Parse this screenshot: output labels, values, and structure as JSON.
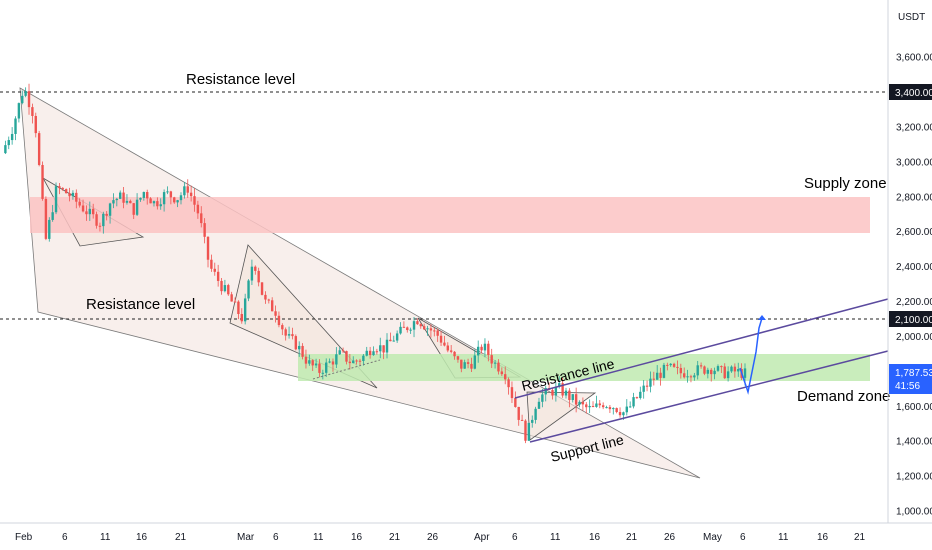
{
  "chart_data": {
    "type": "candlestick",
    "currency_label": "USDT",
    "price_ticks": [
      3600,
      3400,
      3200,
      3000,
      2800,
      2600,
      2400,
      2200,
      2000,
      1800,
      1600,
      1400,
      1200,
      1000
    ],
    "price_tick_labels": [
      "3,600.00",
      "3,400.00",
      "3,200.00",
      "3,000.00",
      "2,800.00",
      "2,600.00",
      "2,400.00",
      "2,200.00",
      "2,000.00",
      "1,800.00",
      "1,600.00",
      "1,400.00",
      "1,200.00",
      "1,000.00"
    ],
    "date_ticks": [
      "Feb",
      "6",
      "11",
      "16",
      "21",
      "Mar",
      "6",
      "11",
      "16",
      "21",
      "26",
      "Apr",
      "6",
      "11",
      "16",
      "21",
      "26",
      "May",
      "6",
      "11",
      "16",
      "21"
    ],
    "resistance_levels": [
      {
        "label": "3,400.00",
        "value": 3400
      },
      {
        "label": "2,100.00",
        "value": 2100
      }
    ],
    "current_price": {
      "value": 1787.53,
      "label": "1,787.53",
      "countdown": "41:56"
    },
    "zones": [
      {
        "name": "Supply zone",
        "from": 2600,
        "to": 2800,
        "color": "#f8b4b4"
      },
      {
        "name": "Demand zone",
        "from": 1750,
        "to": 1900,
        "color": "#b8e8a8"
      }
    ],
    "annotations": [
      "Resistance level",
      "Resistance level",
      "Supply zone",
      "Resistance line",
      "Support line",
      "Demand zone"
    ],
    "price_path": [
      3050,
      3200,
      3430,
      3250,
      2550,
      2850,
      2820,
      2760,
      2700,
      2650,
      2780,
      2800,
      2720,
      2830,
      2760,
      2820,
      2790,
      2850,
      2700,
      2400,
      2300,
      2200,
      2100,
      2450,
      2200,
      2150,
      2000,
      1950,
      1850,
      1800,
      1850,
      1900,
      1850,
      1880,
      1950,
      1930,
      2000,
      2050,
      2100,
      2050,
      2000,
      1900,
      1830,
      1850,
      1950,
      1850,
      1800,
      1600,
      1420,
      1650,
      1680,
      1700,
      1650,
      1600,
      1580,
      1620,
      1600,
      1560,
      1640,
      1720,
      1780,
      1820,
      1790,
      1800,
      1810,
      1820,
      1790,
      1800,
      1787
    ],
    "colors": {
      "up": "#26a69a",
      "down": "#ef5350",
      "channel": "#5b4a9e",
      "wedge_fill": "#f3e6e2"
    }
  }
}
